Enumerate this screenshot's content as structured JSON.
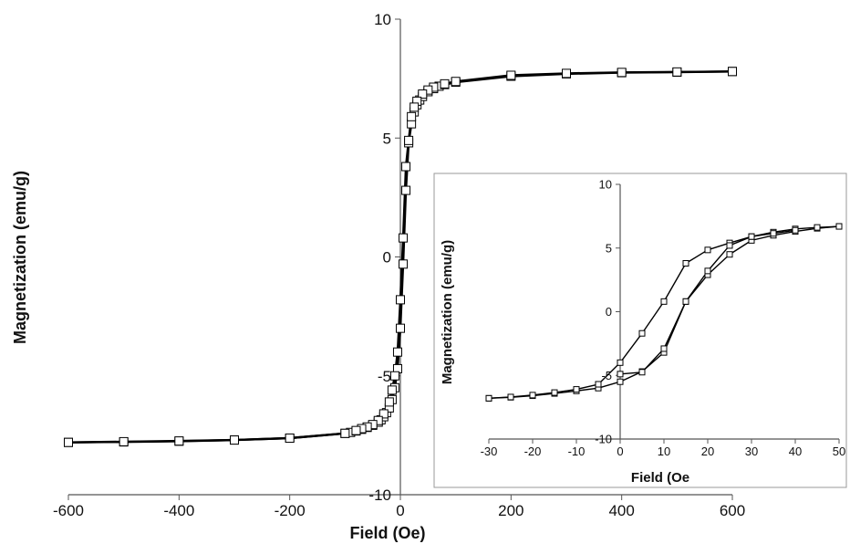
{
  "chart_data": [
    {
      "type": "line",
      "xlabel": "Field (Oe)",
      "ylabel": "Magnetization (emu/g)",
      "xlim": [
        -600,
        600
      ],
      "ylim": [
        -10,
        10
      ],
      "xticks": [
        "-600",
        "-400",
        "-200",
        "0",
        "200",
        "400",
        "600"
      ],
      "yticks": [
        "-10",
        "-5",
        "0",
        "5",
        "10"
      ],
      "grid": false,
      "series": [
        {
          "x": [
            -600,
            -500,
            -400,
            -300,
            -200,
            -100,
            -90,
            -80,
            -70,
            -60,
            -50,
            -40,
            -35,
            -30,
            -25,
            -20,
            -15,
            -10,
            -5,
            0,
            5,
            10,
            15,
            20,
            25,
            30,
            35,
            40,
            50,
            60,
            70,
            80,
            100,
            200,
            300,
            400,
            500,
            600
          ],
          "y": [
            -7.8,
            -7.78,
            -7.75,
            -7.7,
            -7.62,
            -7.42,
            -7.38,
            -7.32,
            -7.25,
            -7.17,
            -7.08,
            -6.95,
            -6.85,
            -6.72,
            -6.55,
            -6.35,
            -6.0,
            -5.5,
            -4.7,
            -3.0,
            -0.3,
            2.8,
            4.8,
            5.6,
            6.1,
            6.4,
            6.6,
            6.75,
            6.95,
            7.08,
            7.18,
            7.25,
            7.35,
            7.6,
            7.7,
            7.75,
            7.77,
            7.8
          ]
        },
        {
          "x": [
            600,
            500,
            400,
            300,
            200,
            100,
            80,
            60,
            50,
            40,
            30,
            25,
            20,
            15,
            10,
            5,
            0,
            -5,
            -10,
            -15,
            -20,
            -30,
            -40,
            -50,
            -60,
            -70,
            -80,
            -100,
            -200,
            -300,
            -400,
            -500,
            -600
          ],
          "y": [
            7.8,
            7.78,
            7.76,
            7.72,
            7.64,
            7.38,
            7.28,
            7.14,
            7.02,
            6.85,
            6.55,
            6.3,
            5.9,
            4.9,
            3.8,
            0.8,
            -1.8,
            -4.0,
            -5.0,
            -5.6,
            -6.1,
            -6.6,
            -6.88,
            -7.05,
            -7.15,
            -7.22,
            -7.3,
            -7.42,
            -7.62,
            -7.7,
            -7.74,
            -7.77,
            -7.8
          ]
        }
      ]
    },
    {
      "type": "line",
      "xlabel": "Field (Oe",
      "ylabel": "Magnetization (emu/g)",
      "xlim": [
        -30,
        50
      ],
      "ylim": [
        -10,
        10
      ],
      "xticks": [
        "-30",
        "-20",
        "-10",
        "0",
        "10",
        "20",
        "30",
        "40",
        "50"
      ],
      "yticks": [
        "-10",
        "-5",
        "0",
        "5",
        "10"
      ],
      "grid": false,
      "series": [
        {
          "x": [
            -30,
            -25,
            -20,
            -15,
            -10,
            -5,
            0,
            5,
            10,
            15,
            20,
            25,
            30,
            35,
            40,
            45,
            50
          ],
          "y": [
            -6.8,
            -6.72,
            -6.6,
            -6.42,
            -6.22,
            -6.0,
            -5.5,
            -4.7,
            -3.2,
            0.8,
            2.9,
            4.5,
            5.6,
            6.0,
            6.3,
            6.55,
            6.7
          ]
        },
        {
          "x": [
            50,
            45,
            40,
            35,
            30,
            25,
            20,
            15,
            10,
            5,
            0,
            -5,
            -10,
            -15,
            -20,
            -25,
            -30
          ],
          "y": [
            6.7,
            6.62,
            6.5,
            6.25,
            5.9,
            5.4,
            4.85,
            3.8,
            0.8,
            -1.7,
            -4.0,
            -5.7,
            -6.1,
            -6.35,
            -6.55,
            -6.7,
            -6.8
          ]
        },
        {
          "x": [
            0,
            5,
            10,
            15,
            20,
            25,
            30,
            35,
            40
          ],
          "y": [
            -4.9,
            -4.75,
            -2.9,
            0.8,
            3.2,
            5.2,
            5.9,
            6.15,
            6.4
          ]
        }
      ]
    }
  ]
}
